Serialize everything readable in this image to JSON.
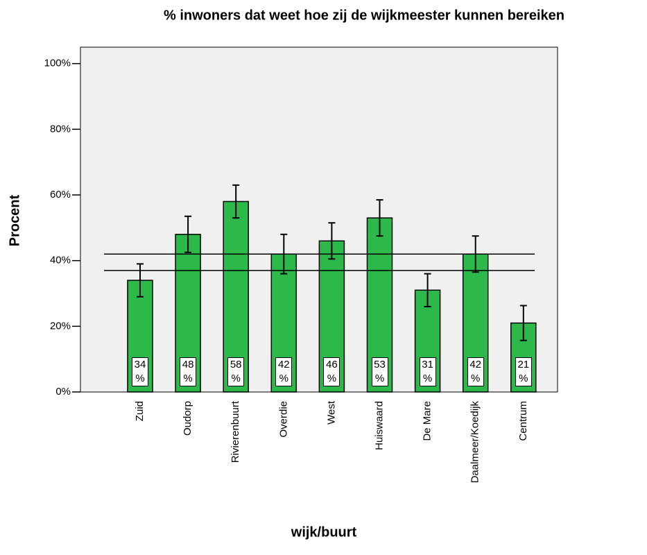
{
  "chart_data": {
    "type": "bar",
    "title": "% inwoners dat weet hoe zij de wijkmeester kunnen bereiken",
    "x_label": "wijk/buurt",
    "y_label": "Procent",
    "categories": [
      "Zuid",
      "Oudorp",
      "Rivierenbuurt",
      "Overdie",
      "West",
      "Huiswaard",
      "De Mare",
      "Daalmeer/Koedijk",
      "Centrum"
    ],
    "values": [
      34,
      48,
      58,
      42,
      46,
      53,
      31,
      42,
      21
    ],
    "value_labels": [
      "34 %",
      "48 %",
      "58 %",
      "42 %",
      "46 %",
      "53 %",
      "31 %",
      "42 %",
      "21 %"
    ],
    "errors": [
      5,
      5.5,
      5,
      6,
      5.5,
      5.5,
      5,
      5.5,
      5.3
    ],
    "reference_lines": [
      42,
      37
    ],
    "color": "#2db84a",
    "ylim": [
      0,
      105
    ],
    "yticks": [
      {
        "value": 0,
        "label": "0%"
      },
      {
        "value": 20,
        "label": "20%"
      },
      {
        "value": 40,
        "label": "40%"
      },
      {
        "value": 60,
        "label": "60%"
      },
      {
        "value": 80,
        "label": "80%"
      },
      {
        "value": 100,
        "label": "100%"
      }
    ]
  }
}
